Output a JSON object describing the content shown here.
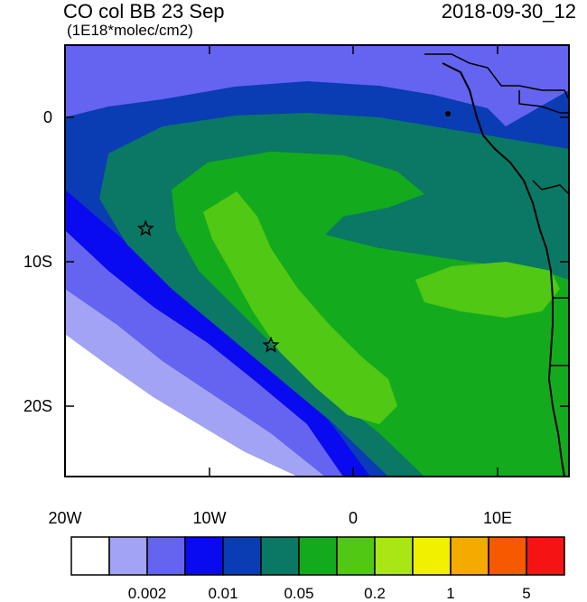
{
  "header": {
    "title": "CO col BB 23 Sep",
    "subtitle": "(1E18*molec/cm2)",
    "datetime": "2018-09-30_12"
  },
  "axes": {
    "x_ticks": [
      "20W",
      "10W",
      "0",
      "10E"
    ],
    "y_ticks": [
      "0",
      "10S",
      "20S"
    ]
  },
  "colorbar": {
    "labels": [
      "0.002",
      "0.01",
      "0.05",
      "0.2",
      "1",
      "5"
    ],
    "colors": [
      "#ffffff",
      "#a3a3f5",
      "#6464f0",
      "#0a0af0",
      "#0a3cb4",
      "#0a7864",
      "#14aa1e",
      "#50c814",
      "#aae614",
      "#f0f000",
      "#f5aa00",
      "#f55a00",
      "#f51414"
    ]
  },
  "map": {
    "domain_lon": [
      -20,
      15
    ],
    "domain_lat": [
      -25,
      4.6
    ],
    "markers": [
      {
        "name": "star-marker-west",
        "lon": -14.4,
        "lat": -8.0
      },
      {
        "name": "star-marker-south",
        "lon": -5.7,
        "lat": -16.0
      }
    ]
  }
}
